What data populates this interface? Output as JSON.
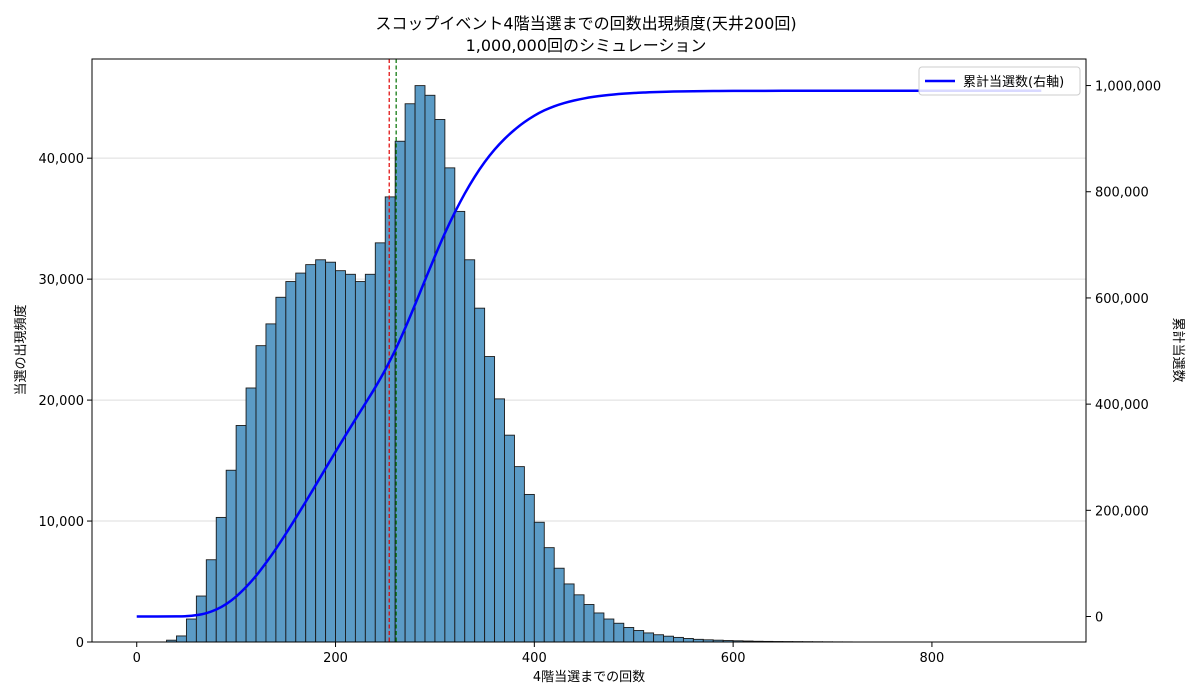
{
  "chart_data": {
    "type": "bar",
    "title_line1": "スコップイベント4階当選までの回数出現頻度(天井200回)",
    "title_line2": "1,000,000回のシミュレーション",
    "xlabel": "4階当選までの回数",
    "ylabel_left": "当選の出現頻度",
    "ylabel_right": "累計当選数",
    "legend": {
      "label": "累計当選数(右軸)",
      "color": "#0000ff",
      "placement": "top-right"
    },
    "bar_color": "#5b9bc6",
    "bar_edge_color": "#1a1a1a",
    "xlim": [
      -45,
      955
    ],
    "ylim_left": [
      0,
      48200
    ],
    "ylim_right": [
      -48000,
      1050000
    ],
    "x_ticks": [
      0,
      200,
      400,
      600,
      800
    ],
    "x_tick_labels": [
      "0",
      "200",
      "400",
      "600",
      "800"
    ],
    "y_ticks_left": [
      0,
      10000,
      20000,
      30000,
      40000
    ],
    "y_tick_labels_left": [
      "0",
      "10,000",
      "20,000",
      "30,000",
      "40,000"
    ],
    "y_ticks_right": [
      0,
      200000,
      400000,
      600000,
      800000,
      1000000
    ],
    "y_tick_labels_right": [
      "0",
      "200,000",
      "400,000",
      "600,000",
      "800,000",
      "1,000,000"
    ],
    "grid": "horizontal",
    "bin_width": 10,
    "bin_starts": [
      30,
      40,
      50,
      60,
      70,
      80,
      90,
      100,
      110,
      120,
      130,
      140,
      150,
      160,
      170,
      180,
      190,
      200,
      210,
      220,
      230,
      240,
      250,
      260,
      270,
      280,
      290,
      300,
      310,
      320,
      330,
      340,
      350,
      360,
      370,
      380,
      390,
      400,
      410,
      420,
      430,
      440,
      450,
      460,
      470,
      480,
      490,
      500,
      510,
      520,
      530,
      540,
      550,
      560,
      570,
      580,
      590,
      600,
      610,
      620,
      630,
      640,
      650,
      660,
      670,
      680,
      690,
      700,
      710
    ],
    "frequencies": [
      150,
      500,
      1900,
      3800,
      6800,
      10300,
      14200,
      17900,
      21000,
      24500,
      26300,
      28500,
      29800,
      30500,
      31200,
      31600,
      31400,
      30700,
      30400,
      29800,
      30400,
      33000,
      36800,
      41400,
      44500,
      46000,
      45200,
      43200,
      39200,
      35600,
      31600,
      27600,
      23600,
      20100,
      17100,
      14500,
      12200,
      9900,
      7800,
      6100,
      4800,
      3900,
      3100,
      2400,
      1900,
      1550,
      1200,
      950,
      750,
      600,
      480,
      380,
      290,
      220,
      180,
      150,
      120,
      100,
      80,
      60,
      50,
      40,
      35,
      30,
      25,
      20,
      15,
      10,
      8
    ],
    "cumulative": {
      "name": "累計当選数(右軸)",
      "x": [
        0,
        40,
        50,
        60,
        70,
        80,
        90,
        100,
        110,
        120,
        130,
        140,
        150,
        160,
        170,
        180,
        190,
        200,
        210,
        220,
        230,
        240,
        250,
        260,
        270,
        280,
        290,
        300,
        310,
        320,
        330,
        340,
        350,
        360,
        370,
        380,
        390,
        400,
        410,
        420,
        430,
        440,
        450,
        460,
        470,
        480,
        490,
        500,
        510,
        520,
        540,
        560,
        580,
        600,
        650,
        700,
        800,
        910
      ],
      "y": [
        0,
        150,
        650,
        2550,
        6350,
        13150,
        23450,
        37650,
        55550,
        76550,
        101050,
        127350,
        155850,
        185650,
        216150,
        247350,
        278950,
        310350,
        341050,
        371450,
        401250,
        431650,
        464650,
        501450,
        542850,
        587350,
        633350,
        678550,
        721750,
        760950,
        796550,
        828150,
        855750,
        879350,
        899450,
        916550,
        931050,
        943250,
        953150,
        960950,
        967050,
        971850,
        975750,
        978850,
        981250,
        983150,
        984700,
        985900,
        986850,
        987600,
        988680,
        989320,
        989690,
        989910,
        990100,
        990200,
        990250,
        990260
      ]
    },
    "vline_red": 254,
    "vline_green": 261,
    "vline_red_color": "#e00000",
    "vline_green_color": "#007000"
  }
}
